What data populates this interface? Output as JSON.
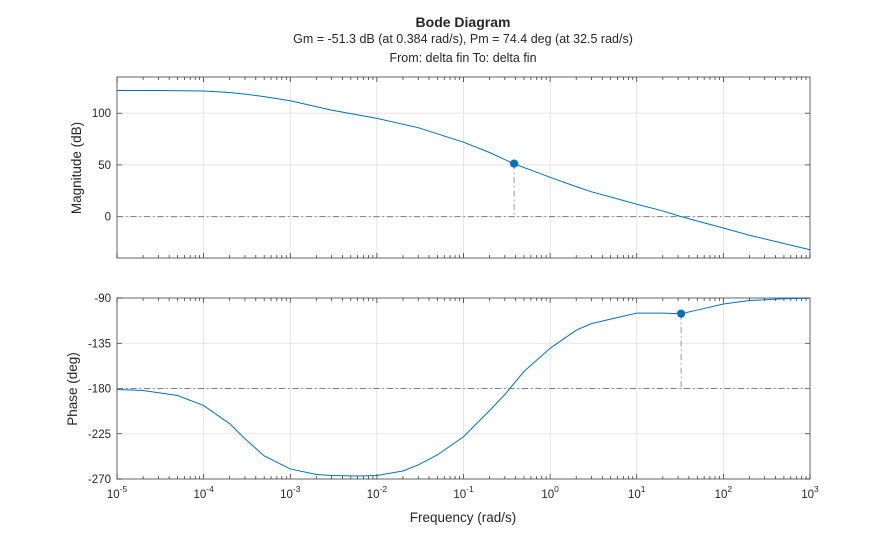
{
  "title": "Bode Diagram",
  "subtitle": "Gm = -51.3 dB (at 0.384 rad/s),  Pm = 74.4 deg (at 32.5 rad/s)",
  "io_label": "From: delta fin  To: delta fin",
  "chart_data": [
    {
      "type": "line",
      "panel": "magnitude",
      "ylabel": "Magnitude (dB)",
      "xscale": "log",
      "xlim": [
        1e-05,
        1000
      ],
      "ylim": [
        -40,
        135
      ],
      "yticks": [
        0,
        50,
        100
      ],
      "ytick_labels": [
        "0",
        "50",
        "100"
      ],
      "grid": true,
      "reference_line": 0,
      "series": [
        {
          "x": [
            1e-05,
            3e-05,
            0.0001,
            0.0002,
            0.0003,
            0.0005,
            0.001,
            0.003,
            0.01,
            0.03,
            0.1,
            0.2,
            0.384,
            0.6,
            1,
            2,
            3,
            5,
            10,
            20,
            32.5,
            60,
            100,
            200,
            500,
            1000
          ],
          "y": [
            122,
            122,
            121.5,
            120,
            118.5,
            116,
            112,
            103,
            95,
            86,
            72,
            62,
            51,
            45,
            38,
            29,
            24,
            19,
            12,
            5.5,
            0,
            -6,
            -11,
            -18,
            -26,
            -32
          ]
        }
      ],
      "marker": {
        "x": 0.384,
        "y": 51.3
      }
    },
    {
      "type": "line",
      "panel": "phase",
      "ylabel": "Phase (deg)",
      "xlabel": "Frequency (rad/s)",
      "xscale": "log",
      "xlim": [
        1e-05,
        1000
      ],
      "ylim": [
        -270,
        -90
      ],
      "yticks": [
        -270,
        -225,
        -180,
        -135,
        -90
      ],
      "ytick_labels": [
        "-270",
        "-225",
        "-180",
        "-135",
        "-90"
      ],
      "xticks": [
        1e-05,
        0.0001,
        0.001,
        0.01,
        0.1,
        1,
        10,
        100,
        1000
      ],
      "xtick_labels": [
        [
          "10",
          "-5"
        ],
        [
          "10",
          "-4"
        ],
        [
          "10",
          "-3"
        ],
        [
          "10",
          "-2"
        ],
        [
          "10",
          "-1"
        ],
        [
          "10",
          "0"
        ],
        [
          "10",
          "1"
        ],
        [
          "10",
          "2"
        ],
        [
          "10",
          "3"
        ]
      ],
      "grid": true,
      "reference_line": -180,
      "series": [
        {
          "x": [
            1e-05,
            2e-05,
            5e-05,
            0.0001,
            0.0002,
            0.0003,
            0.0005,
            0.001,
            0.002,
            0.003,
            0.006,
            0.01,
            0.02,
            0.03,
            0.05,
            0.1,
            0.2,
            0.3,
            0.5,
            1,
            2,
            3,
            5,
            10,
            20,
            32.5,
            50,
            100,
            200,
            500,
            1000
          ],
          "y": [
            -181,
            -182,
            -187,
            -197,
            -215,
            -230,
            -247,
            -260,
            -265.5,
            -266.5,
            -267,
            -266.5,
            -262,
            -256,
            -246,
            -228,
            -202,
            -186,
            -163,
            -140,
            -122,
            -115.5,
            -111,
            -105,
            -105,
            -105.6,
            -102,
            -96,
            -92.5,
            -90.8,
            -90.3
          ]
        }
      ],
      "marker": {
        "x": 32.5,
        "y": -105.6
      }
    }
  ]
}
